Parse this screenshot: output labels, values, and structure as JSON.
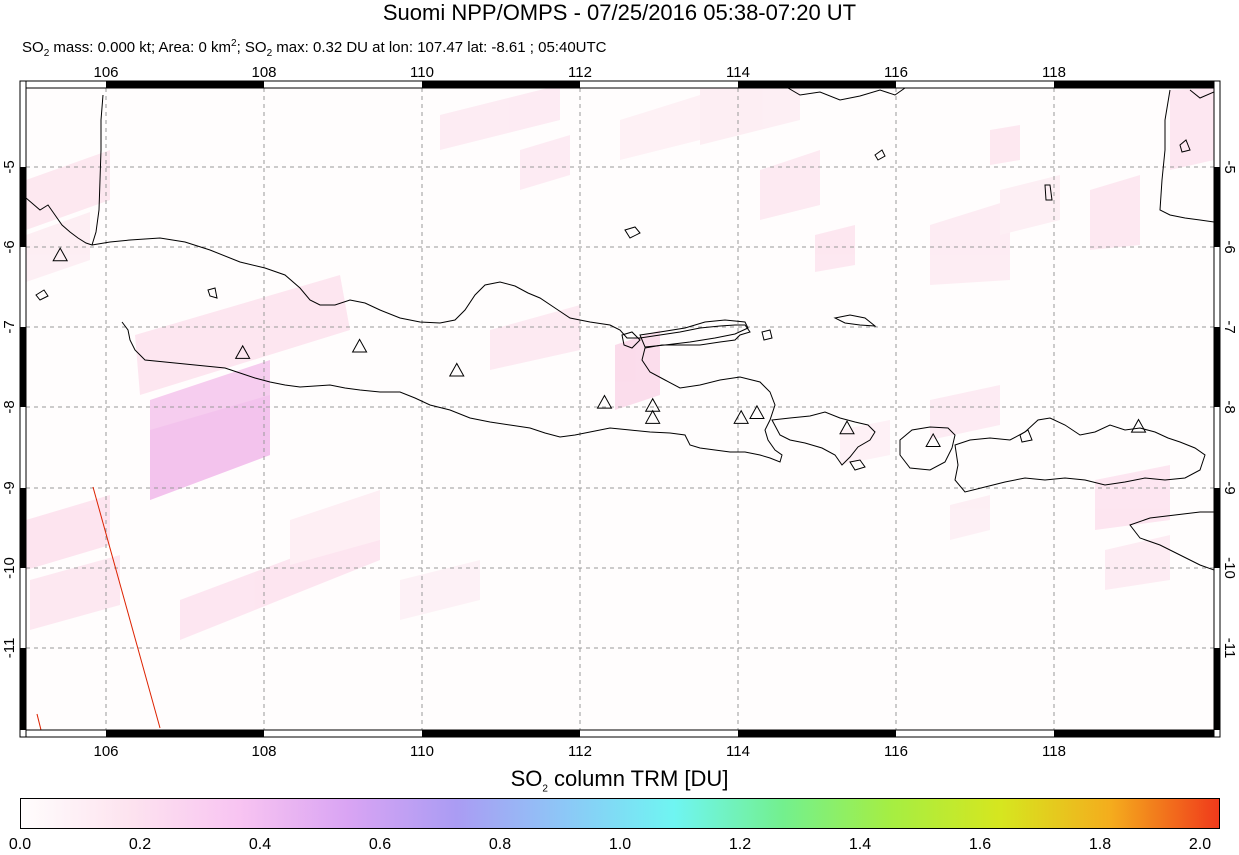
{
  "title": "Suomi NPP/OMPS - 07/25/2016 05:38-07:20 UT",
  "subtitle": {
    "so2_mass_label": "SO",
    "so2_mass_value": " mass: 0.000 kt; Area: 0 km",
    "area_sup": "2",
    "so2_max_label": "; SO",
    "so2_max_value": " max: 0.32 DU at lon: 107.47 lat: -8.61 ; 05:40UTC",
    "sub2": "2"
  },
  "map": {
    "lon_range": [
      105,
      120
    ],
    "lat_range": [
      -12,
      -4
    ],
    "lon_ticks": [
      "106",
      "108",
      "110",
      "112",
      "114",
      "116",
      "118"
    ],
    "lat_ticks": [
      "-5",
      "-6",
      "-7",
      "-8",
      "-9",
      "-10",
      "-11"
    ],
    "volcanoes": [
      {
        "lon": 105.42,
        "lat": -6.1
      },
      {
        "lon": 107.73,
        "lat": -7.32
      },
      {
        "lon": 109.21,
        "lat": -7.24
      },
      {
        "lon": 110.44,
        "lat": -7.54
      },
      {
        "lon": 112.31,
        "lat": -7.94
      },
      {
        "lon": 112.92,
        "lat": -7.98
      },
      {
        "lon": 112.92,
        "lat": -8.13
      },
      {
        "lon": 114.04,
        "lat": -8.13
      },
      {
        "lon": 114.24,
        "lat": -8.07
      },
      {
        "lon": 115.38,
        "lat": -8.26
      },
      {
        "lon": 116.47,
        "lat": -8.42
      },
      {
        "lon": 119.07,
        "lat": -8.24
      }
    ],
    "track_color": "#dd2200"
  },
  "colorbar": {
    "title_pre": "SO",
    "title_sub": "2",
    "title_post": " column TRM [DU]",
    "ticks": [
      "0.0",
      "0.2",
      "0.4",
      "0.6",
      "0.8",
      "1.0",
      "1.2",
      "1.4",
      "1.6",
      "1.8",
      "2.0"
    ],
    "colors": [
      "#fffdfd",
      "#fde3ef",
      "#f8c4f2",
      "#d9a4f3",
      "#aa9cf3",
      "#8cc8f7",
      "#6ff5f2",
      "#73f08e",
      "#a6ee42",
      "#d6e61f",
      "#f4ad1d",
      "#f03a1b"
    ]
  }
}
